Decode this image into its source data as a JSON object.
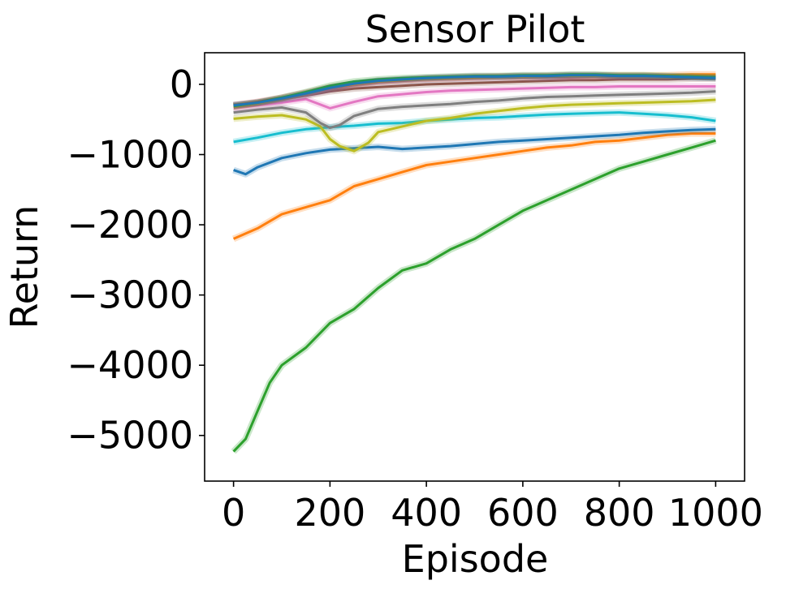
{
  "chart_data": {
    "type": "line",
    "title": "Sensor Pilot",
    "xlabel": "Episode",
    "ylabel": "Return",
    "xlim": [
      -60,
      1060
    ],
    "ylim": [
      -5650,
      450
    ],
    "xticks": [
      0,
      200,
      400,
      600,
      800,
      1000
    ],
    "xtick_labels": [
      "0",
      "200",
      "400",
      "600",
      "800",
      "1000"
    ],
    "yticks": [
      0,
      -1000,
      -2000,
      -3000,
      -4000,
      -5000
    ],
    "ytick_labels": [
      "0",
      "−1000",
      "−2000",
      "−3000",
      "−4000",
      "−5000"
    ],
    "grid": false,
    "legend": "none",
    "series": [
      {
        "color": "#2ca02c",
        "x": [
          0,
          25,
          50,
          75,
          100,
          150,
          200,
          250,
          300,
          350,
          400,
          450,
          500,
          550,
          600,
          650,
          700,
          750,
          800,
          850,
          900,
          950,
          1000
        ],
        "y": [
          -5230,
          -5050,
          -4650,
          -4250,
          -4000,
          -3750,
          -3400,
          -3200,
          -2900,
          -2650,
          -2550,
          -2350,
          -2200,
          -2000,
          -1800,
          -1650,
          -1500,
          -1350,
          -1200,
          -1100,
          -1000,
          -900,
          -800
        ]
      },
      {
        "color": "#ff7f0e",
        "x": [
          0,
          50,
          100,
          150,
          200,
          250,
          300,
          350,
          400,
          450,
          500,
          550,
          600,
          650,
          700,
          750,
          800,
          850,
          900,
          950,
          1000
        ],
        "y": [
          -2200,
          -2050,
          -1850,
          -1750,
          -1650,
          -1450,
          -1350,
          -1250,
          -1150,
          -1100,
          -1050,
          -1000,
          -950,
          -900,
          -870,
          -820,
          -800,
          -760,
          -720,
          -700,
          -700
        ]
      },
      {
        "color": "#1f77b4",
        "x": [
          0,
          25,
          50,
          100,
          150,
          200,
          250,
          300,
          350,
          400,
          450,
          500,
          550,
          600,
          650,
          700,
          750,
          800,
          850,
          900,
          950,
          1000
        ],
        "y": [
          -1220,
          -1280,
          -1180,
          -1050,
          -980,
          -930,
          -910,
          -890,
          -920,
          -900,
          -880,
          -850,
          -820,
          -800,
          -780,
          -760,
          -740,
          -720,
          -690,
          -670,
          -650,
          -640
        ]
      },
      {
        "color": "#17becf",
        "x": [
          0,
          50,
          100,
          150,
          200,
          250,
          300,
          350,
          400,
          450,
          500,
          550,
          600,
          650,
          700,
          750,
          800,
          850,
          900,
          950,
          1000
        ],
        "y": [
          -820,
          -760,
          -690,
          -640,
          -610,
          -590,
          -560,
          -550,
          -520,
          -500,
          -480,
          -470,
          -450,
          -430,
          -420,
          -410,
          -400,
          -420,
          -440,
          -470,
          -520
        ]
      },
      {
        "color": "#bcbd22",
        "x": [
          0,
          50,
          100,
          150,
          180,
          200,
          220,
          250,
          280,
          300,
          350,
          400,
          450,
          500,
          550,
          600,
          650,
          700,
          750,
          800,
          850,
          900,
          950,
          1000
        ],
        "y": [
          -490,
          -460,
          -440,
          -500,
          -600,
          -780,
          -880,
          -950,
          -830,
          -680,
          -600,
          -520,
          -480,
          -420,
          -380,
          -340,
          -310,
          -290,
          -280,
          -270,
          -260,
          -250,
          -240,
          -220
        ]
      },
      {
        "color": "#7f7f7f",
        "x": [
          0,
          50,
          100,
          150,
          180,
          200,
          220,
          250,
          300,
          350,
          400,
          450,
          500,
          550,
          600,
          650,
          700,
          750,
          800,
          850,
          900,
          950,
          1000
        ],
        "y": [
          -400,
          -360,
          -330,
          -400,
          -550,
          -620,
          -580,
          -450,
          -350,
          -320,
          -300,
          -280,
          -250,
          -230,
          -200,
          -180,
          -170,
          -160,
          -150,
          -140,
          -130,
          -120,
          -100
        ]
      },
      {
        "color": "#e377c2",
        "x": [
          0,
          50,
          100,
          150,
          200,
          250,
          300,
          350,
          400,
          450,
          500,
          550,
          600,
          650,
          700,
          750,
          800,
          850,
          900,
          950,
          1000
        ],
        "y": [
          -340,
          -300,
          -260,
          -210,
          -340,
          -250,
          -170,
          -140,
          -110,
          -90,
          -80,
          -70,
          -60,
          -50,
          -40,
          -40,
          -30,
          -30,
          -30,
          -30,
          -30
        ]
      },
      {
        "color": "#8c564b",
        "x": [
          0,
          50,
          100,
          150,
          200,
          250,
          300,
          350,
          400,
          450,
          500,
          550,
          600,
          650,
          700,
          750,
          800,
          850,
          900,
          950,
          1000
        ],
        "y": [
          -290,
          -260,
          -210,
          -160,
          -100,
          -60,
          -40,
          -20,
          0,
          10,
          20,
          30,
          40,
          50,
          60,
          60,
          70,
          70,
          70,
          80,
          80
        ]
      },
      {
        "color": "#9467bd",
        "x": [
          0,
          50,
          100,
          150,
          200,
          250,
          300,
          350,
          400,
          450,
          500,
          550,
          600,
          650,
          700,
          750,
          800,
          850,
          900,
          950,
          1000
        ],
        "y": [
          -310,
          -270,
          -220,
          -150,
          -70,
          -10,
          30,
          50,
          70,
          80,
          90,
          100,
          100,
          100,
          100,
          110,
          110,
          110,
          110,
          110,
          110
        ]
      },
      {
        "color": "#d62728",
        "x": [
          0,
          50,
          100,
          150,
          200,
          250,
          300,
          350,
          400,
          450,
          500,
          550,
          600,
          650,
          700,
          750,
          800,
          850,
          900,
          950,
          1000
        ],
        "y": [
          -300,
          -250,
          -190,
          -120,
          -40,
          10,
          50,
          70,
          90,
          100,
          110,
          110,
          120,
          120,
          130,
          130,
          120,
          120,
          110,
          110,
          100
        ]
      },
      {
        "color": "#ff7f0e",
        "x": [
          0,
          50,
          100,
          150,
          200,
          250,
          300,
          350,
          400,
          450,
          500,
          550,
          600,
          650,
          700,
          750,
          800,
          850,
          900,
          950,
          1000
        ],
        "y": [
          -320,
          -270,
          -200,
          -130,
          -50,
          0,
          40,
          60,
          80,
          90,
          100,
          110,
          110,
          120,
          120,
          120,
          130,
          130,
          130,
          140,
          140
        ]
      },
      {
        "color": "#2ca02c",
        "x": [
          0,
          50,
          100,
          150,
          200,
          250,
          300,
          350,
          400,
          450,
          500,
          550,
          600,
          650,
          700,
          750,
          800,
          850,
          900,
          950,
          1000
        ],
        "y": [
          -310,
          -260,
          -190,
          -110,
          -20,
          40,
          70,
          90,
          100,
          110,
          120,
          120,
          130,
          130,
          140,
          140,
          130,
          130,
          120,
          110,
          100
        ]
      },
      {
        "color": "#1f77b4",
        "x": [
          0,
          50,
          100,
          150,
          200,
          250,
          300,
          350,
          400,
          450,
          500,
          550,
          600,
          650,
          700,
          750,
          800,
          850,
          900,
          950,
          1000
        ],
        "y": [
          -300,
          -260,
          -200,
          -130,
          -50,
          10,
          50,
          70,
          90,
          100,
          110,
          110,
          120,
          120,
          130,
          130,
          120,
          120,
          110,
          100,
          90
        ]
      }
    ]
  }
}
